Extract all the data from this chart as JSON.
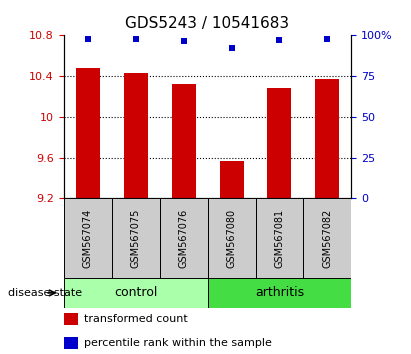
{
  "title": "GDS5243 / 10541683",
  "samples": [
    "GSM567074",
    "GSM567075",
    "GSM567076",
    "GSM567080",
    "GSM567081",
    "GSM567082"
  ],
  "bar_values": [
    10.48,
    10.43,
    10.32,
    9.57,
    10.28,
    10.37
  ],
  "percentile_values": [
    97.5,
    97.5,
    96.5,
    92.0,
    97.0,
    97.5
  ],
  "bar_color": "#cc0000",
  "dot_color": "#0000cc",
  "ylim_left": [
    9.2,
    10.8
  ],
  "ylim_right": [
    0,
    100
  ],
  "yticks_left": [
    9.2,
    9.6,
    10.0,
    10.4,
    10.8
  ],
  "ytick_labels_left": [
    "9.2",
    "9.6",
    "10",
    "10.4",
    "10.8"
  ],
  "yticks_right": [
    0,
    25,
    50,
    75,
    100
  ],
  "ytick_labels_right": [
    "0",
    "25",
    "50",
    "75",
    "100%"
  ],
  "gridlines_at": [
    9.6,
    10.0,
    10.4
  ],
  "groups": [
    {
      "label": "control",
      "indices": [
        0,
        1,
        2
      ],
      "color": "#aaffaa"
    },
    {
      "label": "arthritis",
      "indices": [
        3,
        4,
        5
      ],
      "color": "#44dd44"
    }
  ],
  "group_label_prefix": "disease state",
  "legend_bar_label": "transformed count",
  "legend_dot_label": "percentile rank within the sample",
  "sample_box_color": "#cccccc",
  "bar_width": 0.5
}
